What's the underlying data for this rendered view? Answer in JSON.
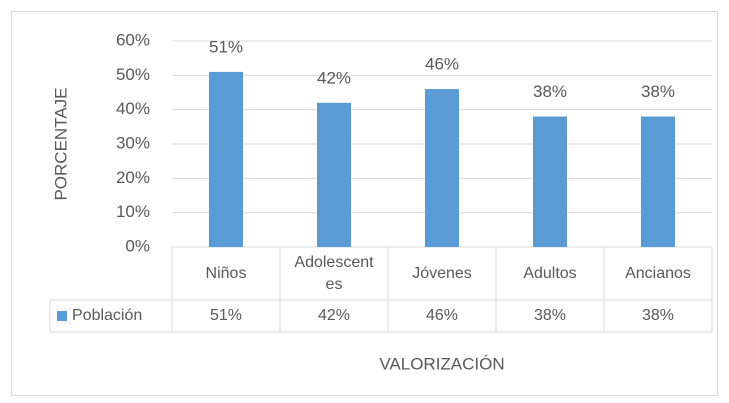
{
  "chart_data": {
    "type": "bar",
    "y_axis_label": "PORCENTAJE",
    "x_axis_label": "VALORIZACIÓN",
    "categories": [
      "Niños",
      "Adolescentes",
      "Jóvenes",
      "Adultos",
      "Ancianos"
    ],
    "series": [
      {
        "name": "Población",
        "color": "#5b9bd5",
        "values": [
          51,
          42,
          46,
          38,
          38
        ],
        "value_labels": [
          "51%",
          "42%",
          "46%",
          "38%",
          "38%"
        ]
      }
    ],
    "ylim": [
      0,
      60
    ],
    "yticks": [
      {
        "value": 0,
        "label": "0%"
      },
      {
        "value": 10,
        "label": "10%"
      },
      {
        "value": 20,
        "label": "20%"
      },
      {
        "value": 30,
        "label": "30%"
      },
      {
        "value": 40,
        "label": "40%"
      },
      {
        "value": 50,
        "label": "50%"
      },
      {
        "value": 60,
        "label": "60%"
      }
    ],
    "grid": true,
    "data_table": true
  }
}
